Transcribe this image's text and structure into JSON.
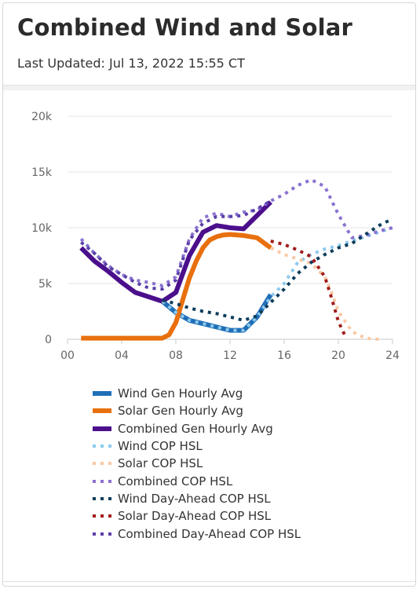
{
  "header": {
    "title": "Combined Wind and Solar",
    "last_updated": "Last Updated: Jul 13, 2022 15:55 CT"
  },
  "chart_data": {
    "type": "line",
    "title": "Combined Wind and Solar",
    "xlabel": "",
    "ylabel": "",
    "xlim": [
      0,
      24
    ],
    "ylim": [
      0,
      20000
    ],
    "x_ticks": [
      0,
      4,
      8,
      12,
      16,
      20,
      24
    ],
    "x_tick_labels": [
      "00",
      "04",
      "08",
      "12",
      "16",
      "20",
      "24"
    ],
    "y_ticks": [
      0,
      5000,
      10000,
      15000,
      20000
    ],
    "y_tick_labels": [
      "0",
      "5k",
      "10k",
      "15k",
      "20k"
    ],
    "grid": "horizontal",
    "legend_position": "bottom",
    "series": [
      {
        "name": "Wind Gen Hourly Avg",
        "style": "solid",
        "color": "#1f6fb8",
        "x": [
          7,
          8,
          9,
          10,
          11,
          12,
          13,
          14,
          15
        ],
        "y": [
          3400,
          2400,
          1700,
          1400,
          1100,
          800,
          800,
          2000,
          4000
        ]
      },
      {
        "name": "Solar Gen Hourly Avg",
        "style": "solid",
        "color": "#e8700e",
        "x": [
          1,
          2,
          3,
          4,
          5,
          6,
          7,
          7.5,
          8,
          8.5,
          9,
          9.5,
          10,
          10.5,
          11,
          11.5,
          12,
          13,
          14,
          15
        ],
        "y": [
          100,
          100,
          100,
          100,
          100,
          100,
          100,
          400,
          1500,
          3500,
          5500,
          7000,
          8200,
          8900,
          9200,
          9350,
          9400,
          9300,
          9100,
          8200
        ]
      },
      {
        "name": "Combined Gen Hourly Avg",
        "style": "solid",
        "color": "#4b0f8c",
        "x": [
          1,
          2,
          3,
          4,
          5,
          6,
          7,
          8,
          9,
          10,
          11,
          12,
          13,
          14,
          15
        ],
        "y": [
          8200,
          7000,
          6100,
          5100,
          4200,
          3800,
          3400,
          4200,
          7500,
          9600,
          10200,
          10000,
          9900,
          11100,
          12300
        ]
      },
      {
        "name": "Wind COP HSL",
        "style": "dotted",
        "color": "#8ec9ec",
        "x": [
          7,
          8,
          9,
          10,
          11,
          12,
          13,
          14,
          15,
          16,
          17,
          18,
          19,
          20,
          21,
          22,
          23,
          24
        ],
        "y": [
          3400,
          2400,
          1700,
          1400,
          1100,
          800,
          800,
          2000,
          3800,
          5000,
          6900,
          7600,
          8100,
          8400,
          8800,
          9200,
          9600,
          10000
        ]
      },
      {
        "name": "Solar COP HSL",
        "style": "dotted",
        "color": "#f9c9a4",
        "x": [
          15,
          16,
          17,
          18,
          19,
          19.5,
          20,
          21,
          22,
          23
        ],
        "y": [
          8200,
          7600,
          7200,
          6800,
          5600,
          4200,
          2500,
          700,
          100,
          0
        ]
      },
      {
        "name": "Combined COP HSL",
        "style": "dotted",
        "color": "#8a72d0",
        "x": [
          1,
          2,
          3,
          4,
          5,
          6,
          7,
          8,
          9,
          10,
          11,
          12,
          13,
          14,
          15,
          16,
          17,
          18,
          19,
          20,
          21,
          22,
          23,
          24
        ],
        "y": [
          9000,
          7700,
          6600,
          5800,
          5300,
          5100,
          4800,
          5600,
          9000,
          10900,
          11300,
          11000,
          11400,
          11600,
          12400,
          13000,
          13800,
          14300,
          13700,
          11200,
          9100,
          9300,
          9700,
          10000
        ]
      },
      {
        "name": "Wind Day-Ahead COP HSL",
        "style": "dotted",
        "color": "#0d3d5c",
        "x": [
          7,
          8,
          9,
          10,
          11,
          12,
          13,
          14,
          15,
          16,
          17,
          18,
          19,
          20,
          21,
          22,
          23,
          24
        ],
        "y": [
          3500,
          3200,
          2800,
          2500,
          2300,
          2000,
          1700,
          2100,
          3300,
          4500,
          5900,
          6900,
          7600,
          8200,
          8600,
          9400,
          10200,
          10800
        ]
      },
      {
        "name": "Solar Day-Ahead COP HSL",
        "style": "dotted",
        "color": "#a01c1c",
        "x": [
          15,
          16,
          17,
          18,
          19,
          19.5,
          20,
          20.5
        ],
        "y": [
          8800,
          8500,
          8000,
          7400,
          5600,
          3700,
          1600,
          300
        ]
      },
      {
        "name": "Combined Day-Ahead COP HSL",
        "style": "dotted",
        "color": "#5b3fa8",
        "x": [
          1,
          2,
          3,
          4,
          5,
          6,
          7,
          8,
          9,
          10,
          11,
          12,
          13,
          14,
          15
        ],
        "y": [
          8700,
          7700,
          6500,
          5800,
          5100,
          4600,
          4500,
          5300,
          8900,
          10400,
          11000,
          11000,
          11100,
          11700,
          12400
        ]
      }
    ]
  }
}
